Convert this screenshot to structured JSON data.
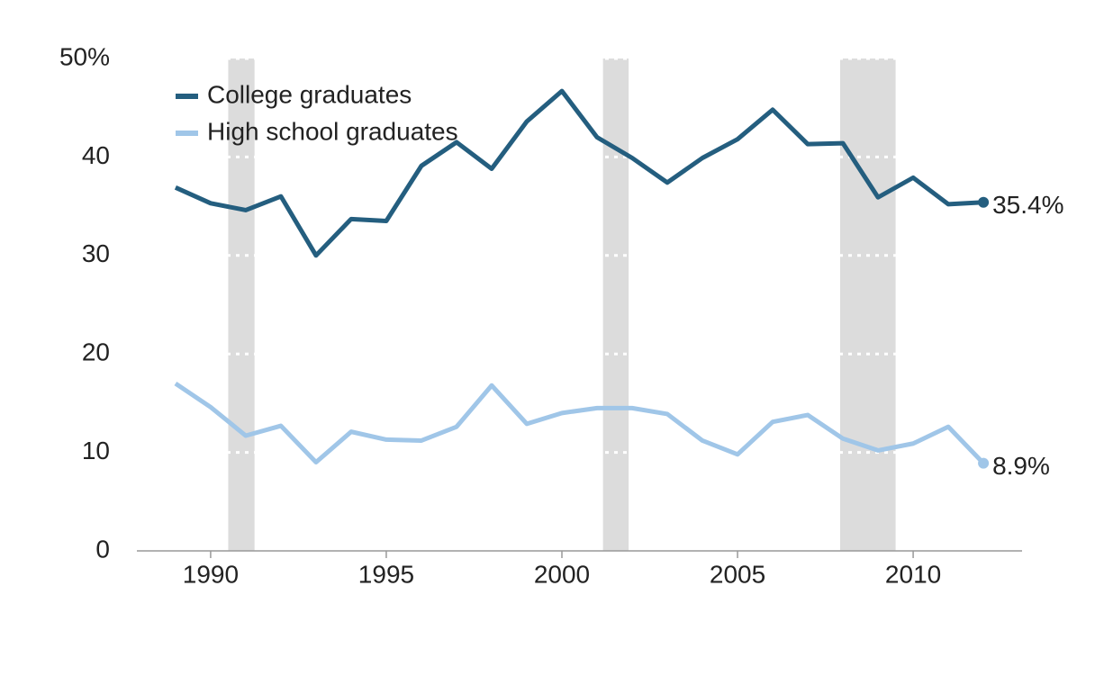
{
  "chart_data": {
    "type": "line",
    "x": [
      1989,
      1990,
      1991,
      1992,
      1993,
      1994,
      1995,
      1996,
      1997,
      1998,
      1999,
      2000,
      2001,
      2002,
      2003,
      2004,
      2005,
      2006,
      2007,
      2008,
      2009,
      2010,
      2011,
      2012
    ],
    "series": [
      {
        "name": "College graduates",
        "color": "#245e7f",
        "values": [
          36.9,
          35.3,
          34.6,
          36.0,
          30.0,
          33.7,
          33.5,
          39.1,
          41.5,
          38.8,
          43.6,
          46.7,
          42.0,
          39.9,
          37.4,
          39.9,
          41.8,
          44.8,
          41.3,
          41.4,
          35.9,
          37.9,
          35.2,
          35.4
        ],
        "value_labels": [
          null,
          null,
          null,
          null,
          null,
          null,
          null,
          null,
          null,
          null,
          null,
          null,
          null,
          null,
          null,
          null,
          null,
          null,
          null,
          null,
          null,
          null,
          null,
          "35.4%"
        ]
      },
      {
        "name": "High school graduates",
        "color": "#a0c6e8",
        "values": [
          17.0,
          14.6,
          11.7,
          12.7,
          9.0,
          12.1,
          11.3,
          11.2,
          12.6,
          16.8,
          12.9,
          14.0,
          14.5,
          14.5,
          13.9,
          11.2,
          9.8,
          13.1,
          13.8,
          11.4,
          10.2,
          10.9,
          12.6,
          8.9
        ],
        "value_labels": [
          null,
          null,
          null,
          null,
          null,
          null,
          null,
          null,
          null,
          null,
          null,
          null,
          null,
          null,
          null,
          null,
          null,
          null,
          null,
          null,
          null,
          null,
          null,
          "8.9%"
        ]
      }
    ],
    "recessions": [
      [
        1990.5,
        1991.25
      ],
      [
        2001.17,
        2001.9
      ],
      [
        2007.92,
        2009.5
      ]
    ],
    "recession_color": "#dcdcdc",
    "xlim": [
      1987.9,
      2013.1
    ],
    "xticks": [
      1990,
      1995,
      2000,
      2005,
      2010
    ],
    "ylim": [
      0,
      50
    ],
    "yticks": [
      0,
      10,
      20,
      30,
      40,
      {
        "value": 50,
        "label": "50%"
      }
    ],
    "grid": true,
    "legend": "top-left"
  }
}
